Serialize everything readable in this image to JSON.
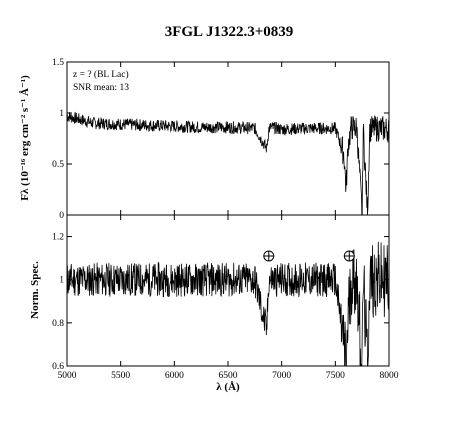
{
  "title": "3FGL J1322.3+0839",
  "chart_data": [
    {
      "type": "line",
      "panel": "flux",
      "x_range": [
        5000,
        8000
      ],
      "ylim": [
        0,
        1.5
      ],
      "yticks": [
        0,
        0.5,
        1,
        1.5
      ],
      "ytick_labels": [
        "0",
        "0.5",
        "1",
        "1.5"
      ],
      "ylabel": "Fλ (10⁻¹⁶ erg cm⁻² s⁻¹ Å⁻¹)",
      "annotations": [
        "z = ? (BL Lac)",
        "SNR mean: 13"
      ],
      "x": [
        5000,
        5250,
        5500,
        5750,
        6000,
        6250,
        6500,
        6750,
        6860,
        6880,
        6900,
        7000,
        7250,
        7500,
        7580,
        7600,
        7620,
        7650,
        7700,
        7750,
        7760,
        7800,
        7820,
        7900,
        8000
      ],
      "y": [
        0.97,
        0.9,
        0.89,
        0.88,
        0.87,
        0.86,
        0.86,
        0.85,
        0.65,
        0.84,
        0.86,
        0.84,
        0.85,
        0.85,
        0.6,
        0.25,
        0.7,
        0.86,
        0.85,
        0.0,
        0.85,
        0.0,
        0.84,
        0.85,
        0.84
      ]
    },
    {
      "type": "line",
      "panel": "normalized",
      "x_range": [
        5000,
        8000
      ],
      "xticks": [
        5000,
        5500,
        6000,
        6500,
        7000,
        7500,
        8000
      ],
      "xtick_labels": [
        "5000",
        "5500",
        "6000",
        "6500",
        "7000",
        "7500",
        "8000"
      ],
      "xlabel": "λ (Å)",
      "ylim": [
        0.6,
        1.3
      ],
      "yticks": [
        0.6,
        0.8,
        1.0,
        1.2
      ],
      "ytick_labels": [
        "0.6",
        "0.8",
        "1",
        "1.2"
      ],
      "ylabel": "Norm. Spec.",
      "telluric_markers": [
        6880,
        7630
      ],
      "x": [
        5000,
        5250,
        5500,
        5750,
        6000,
        6250,
        6500,
        6750,
        6860,
        6880,
        6900,
        7000,
        7250,
        7500,
        7580,
        7600,
        7620,
        7650,
        7700,
        7750,
        7760,
        7800,
        7820,
        7900,
        8000
      ],
      "y": [
        1.0,
        1.0,
        1.0,
        1.0,
        1.0,
        1.0,
        1.0,
        1.0,
        0.76,
        1.0,
        1.0,
        1.0,
        1.0,
        1.0,
        0.7,
        0.6,
        0.83,
        1.0,
        1.0,
        0.6,
        1.0,
        0.6,
        1.0,
        1.0,
        1.0
      ]
    }
  ]
}
